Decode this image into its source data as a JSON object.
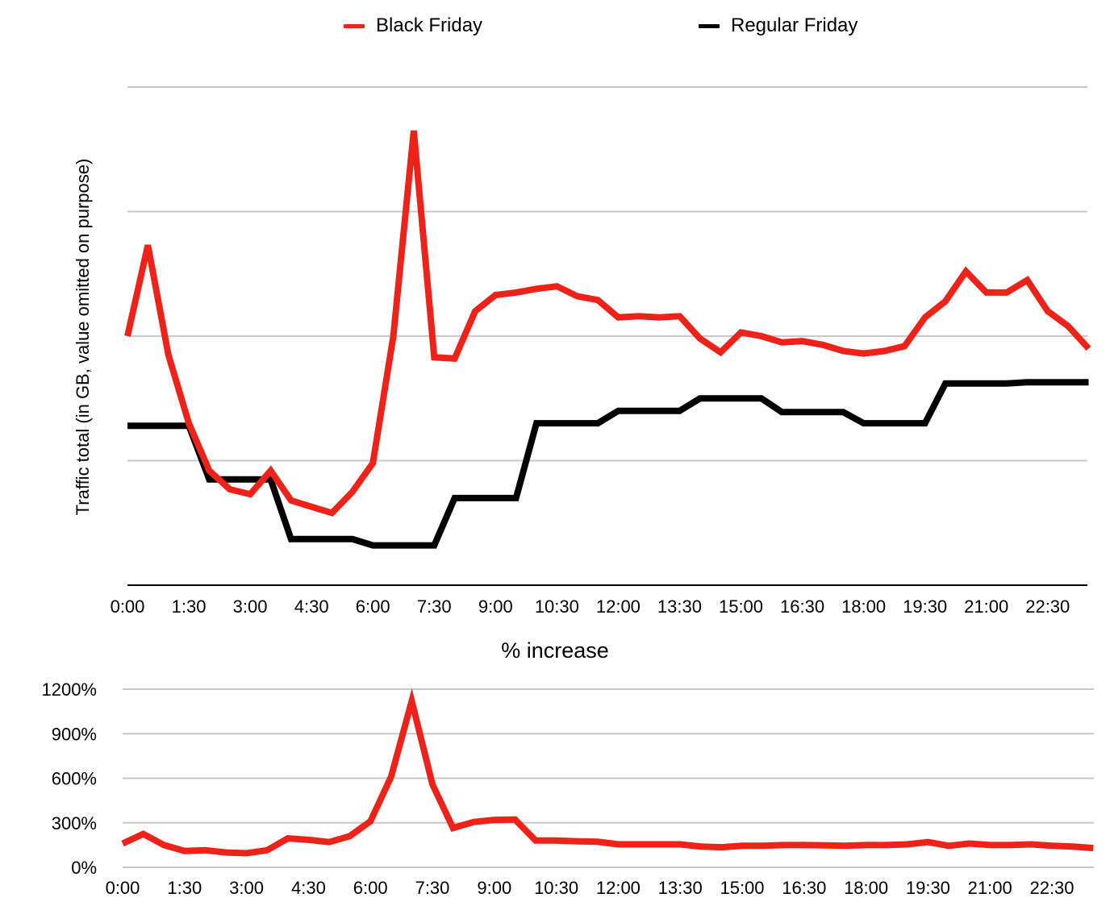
{
  "colors": {
    "black_friday": "#ee2219",
    "regular_friday": "#000000",
    "grid": "#c8c8c8"
  },
  "legend": [
    {
      "label": "Black Friday",
      "color": "#ee2219"
    },
    {
      "label": "Regular Friday",
      "color": "#000000"
    }
  ],
  "chart_data": [
    {
      "type": "line",
      "title": "",
      "xlabel": "",
      "ylabel": "Traffic total (in GB, value omitted on purpose)",
      "ylim": [
        0,
        4
      ],
      "yticks_shown": false,
      "grid": true,
      "legend_position": "top",
      "x_tick_labels": [
        "0:00",
        "1:30",
        "3:00",
        "4:30",
        "6:00",
        "7:30",
        "9:00",
        "10:30",
        "12:00",
        "13:30",
        "15:00",
        "16:30",
        "18:00",
        "19:30",
        "21:00",
        "22:30"
      ],
      "series": [
        {
          "name": "Black Friday",
          "color": "#ee2219",
          "values": [
            2.0,
            2.73,
            1.85,
            1.3,
            0.92,
            0.77,
            0.73,
            0.92,
            0.68,
            0.63,
            0.58,
            0.75,
            0.98,
            2.0,
            3.65,
            1.83,
            1.82,
            2.2,
            2.33,
            2.35,
            2.38,
            2.4,
            2.32,
            2.29,
            2.15,
            2.16,
            2.15,
            2.16,
            1.98,
            1.87,
            2.03,
            2.0,
            1.95,
            1.96,
            1.93,
            1.88,
            1.86,
            1.88,
            1.92,
            2.15,
            2.28,
            2.52,
            2.35,
            2.35,
            2.45,
            2.2,
            2.08,
            1.9
          ]
        },
        {
          "name": "Regular Friday",
          "color": "#000000",
          "values": [
            1.28,
            1.28,
            1.28,
            1.28,
            0.85,
            0.85,
            0.85,
            0.85,
            0.37,
            0.37,
            0.37,
            0.37,
            0.32,
            0.32,
            0.32,
            0.32,
            0.7,
            0.7,
            0.7,
            0.7,
            1.3,
            1.3,
            1.3,
            1.3,
            1.4,
            1.4,
            1.4,
            1.4,
            1.5,
            1.5,
            1.5,
            1.5,
            1.39,
            1.39,
            1.39,
            1.39,
            1.3,
            1.3,
            1.3,
            1.3,
            1.62,
            1.62,
            1.62,
            1.62,
            1.63,
            1.63,
            1.63,
            1.63
          ]
        }
      ]
    },
    {
      "type": "line",
      "title": "% increase",
      "xlabel": "",
      "ylabel": "",
      "ylim": [
        0,
        1200
      ],
      "y_tick_values": [
        0,
        300,
        600,
        900,
        1200
      ],
      "y_tick_labels": [
        "0%",
        "300%",
        "600%",
        "900%",
        "1200%"
      ],
      "grid": true,
      "x_tick_labels": [
        "0:00",
        "1:30",
        "3:00",
        "4:30",
        "6:00",
        "7:30",
        "9:00",
        "10:30",
        "12:00",
        "13:30",
        "15:00",
        "16:30",
        "18:00",
        "19:30",
        "21:00",
        "22:30"
      ],
      "series": [
        {
          "color": "#ee2219",
          "values": [
            160,
            225,
            150,
            110,
            115,
            100,
            95,
            115,
            195,
            185,
            170,
            210,
            310,
            610,
            1120,
            560,
            265,
            305,
            320,
            322,
            180,
            180,
            175,
            172,
            155,
            155,
            155,
            155,
            140,
            135,
            145,
            145,
            150,
            150,
            148,
            145,
            150,
            150,
            155,
            170,
            145,
            160,
            150,
            150,
            155,
            145,
            140,
            130
          ]
        }
      ]
    }
  ]
}
